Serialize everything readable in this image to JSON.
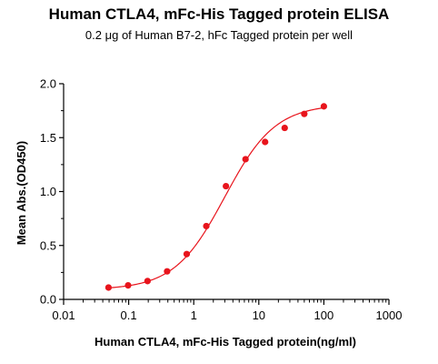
{
  "chart_data": {
    "type": "scatter",
    "title": "Human CTLA4, mFc-His Tagged protein ELISA",
    "subtitle": "0.2 μg of Human B7-2, hFc Tagged protein per well",
    "xlabel": "Human CTLA4, mFc-His Tagged protein(ng/ml)",
    "ylabel": "Mean Abs.(OD450)",
    "x_scale": "log",
    "xlim": [
      0.01,
      1000
    ],
    "ylim": [
      0,
      2.0
    ],
    "x_ticks": [
      "0.01",
      "0.1",
      "1",
      "10",
      "100",
      "1000"
    ],
    "y_ticks": [
      "0.0",
      "0.5",
      "1.0",
      "1.5",
      "2.0"
    ],
    "grid": false,
    "point_color": "#e8141c",
    "curve_color": "#e8141c",
    "series": [
      {
        "x": [
          0.049,
          0.098,
          0.195,
          0.39,
          0.78,
          1.56,
          3.125,
          6.25,
          12.5,
          25,
          50,
          100
        ],
        "y": [
          0.11,
          0.13,
          0.17,
          0.26,
          0.42,
          0.68,
          1.05,
          1.3,
          1.46,
          1.59,
          1.72,
          1.79
        ]
      }
    ],
    "fit": {
      "model": "4PL",
      "bottom": 0.09,
      "top": 1.81,
      "ec50": 3.0,
      "hill": 1.12,
      "x_range": [
        0.049,
        100
      ]
    }
  }
}
